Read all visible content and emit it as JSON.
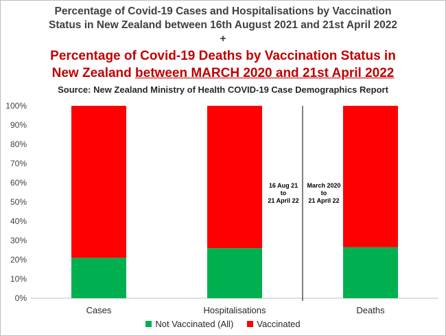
{
  "header": {
    "line1": "Percentage of Covid-19 Cases and Hospitalisations by Vaccination",
    "line2": "Status in New Zealand between 16th August 2021 and 21st April 2022",
    "plus": "+",
    "line3": "Percentage of Covid-19 Deaths by Vaccination Status in",
    "line4_pre": "New Zealand ",
    "line4_underlined": "between MARCH 2020 and 21st April 2022",
    "source": "Source: New Zealand Ministry of Health COVID-19 Case Demographics Report"
  },
  "colors": {
    "not_vaccinated": "#00b050",
    "vaccinated": "#ff0000",
    "title_red": "#c00000"
  },
  "chart_data": {
    "type": "bar",
    "stacked": true,
    "categories": [
      "Cases",
      "Hospitalisations",
      "Deaths"
    ],
    "series": [
      {
        "name": "Not Vaccinated (All)",
        "values": [
          21,
          26,
          26.5
        ]
      },
      {
        "name": "Vaccinated",
        "values": [
          79,
          74,
          73.5
        ]
      }
    ],
    "ylim": [
      0,
      100
    ],
    "yticks": [
      "0%",
      "10%",
      "20%",
      "30%",
      "40%",
      "50%",
      "60%",
      "70%",
      "80%",
      "90%",
      "100%"
    ],
    "legend_position": "bottom",
    "annotations": [
      {
        "lines": [
          "16 Aug 21",
          "to",
          "21 April 22"
        ]
      },
      {
        "lines": [
          "March 2020",
          "to",
          "21 April 22"
        ]
      }
    ]
  }
}
